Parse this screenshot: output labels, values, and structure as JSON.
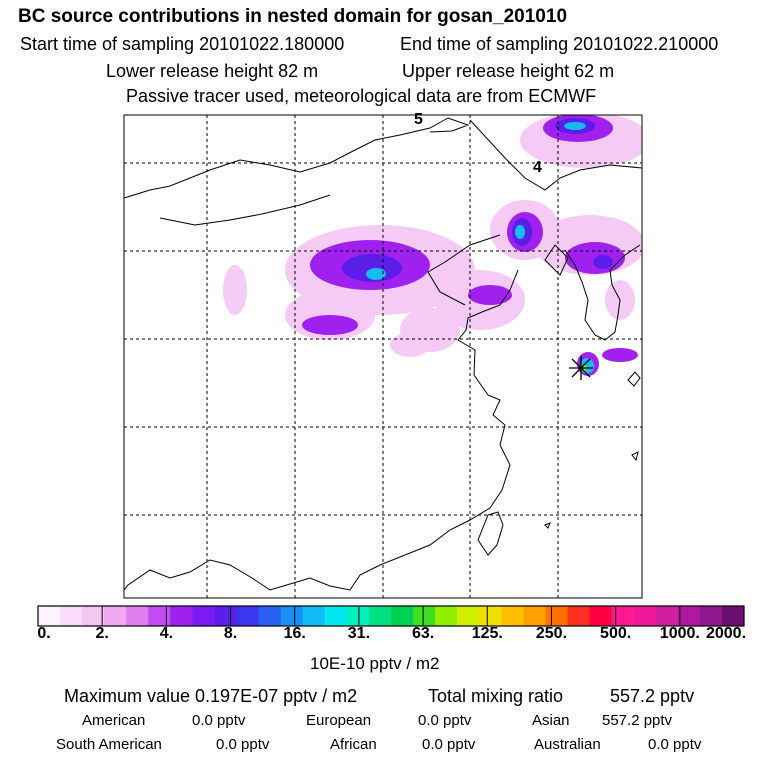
{
  "header": {
    "title": "BC  source contributions in nested domain for gosan_201010",
    "start_time": "Start time of sampling 20101022.180000",
    "end_time": "End time of sampling 20101022.210000",
    "lower_release": "Lower release height   82 m",
    "upper_release": "Upper release height   62 m",
    "passive_line": "Passive tracer used, meteorological data are from ECMWF"
  },
  "map": {
    "gridline_labels": [
      "5",
      "4"
    ],
    "receptor_marker": "gosan-receptor"
  },
  "colorbar": {
    "colors": [
      "#fdf2fd",
      "#f9dcf9",
      "#f4c6f4",
      "#eeaaf0",
      "#e07ef0",
      "#c24cf2",
      "#a020f0",
      "#7a1cf2",
      "#5a1ee8",
      "#3c36f0",
      "#2860f2",
      "#1890f4",
      "#14bcf6",
      "#00e8f0",
      "#00f0c0",
      "#00e080",
      "#00d050",
      "#40e020",
      "#90f000",
      "#d0f000",
      "#f0e000",
      "#ffc000",
      "#ffa000",
      "#ff7000",
      "#ff3020",
      "#ff0040",
      "#ff1890",
      "#f01898",
      "#d020a0",
      "#b018a0",
      "#901890",
      "#6a1070"
    ],
    "tick_labels": [
      "0.",
      "2.",
      "4.",
      "8.",
      "16.",
      "31.",
      "63.",
      "125.",
      "250.",
      "500.",
      "1000.",
      "2000."
    ],
    "units": "10E-10 pptv / m2"
  },
  "stats": {
    "max_label": "Maximum value  0.197E-07 pptv / m2",
    "total_label": "Total mixing ratio",
    "total_value": "557.2 pptv",
    "regions": [
      {
        "name": "American",
        "value": "0.0 pptv"
      },
      {
        "name": "European",
        "value": "0.0 pptv"
      },
      {
        "name": "Asian",
        "value": "557.2 pptv"
      },
      {
        "name": "South American",
        "value": "0.0 pptv"
      },
      {
        "name": "African",
        "value": "0.0 pptv"
      },
      {
        "name": "Australian",
        "value": "0.0 pptv"
      }
    ]
  }
}
